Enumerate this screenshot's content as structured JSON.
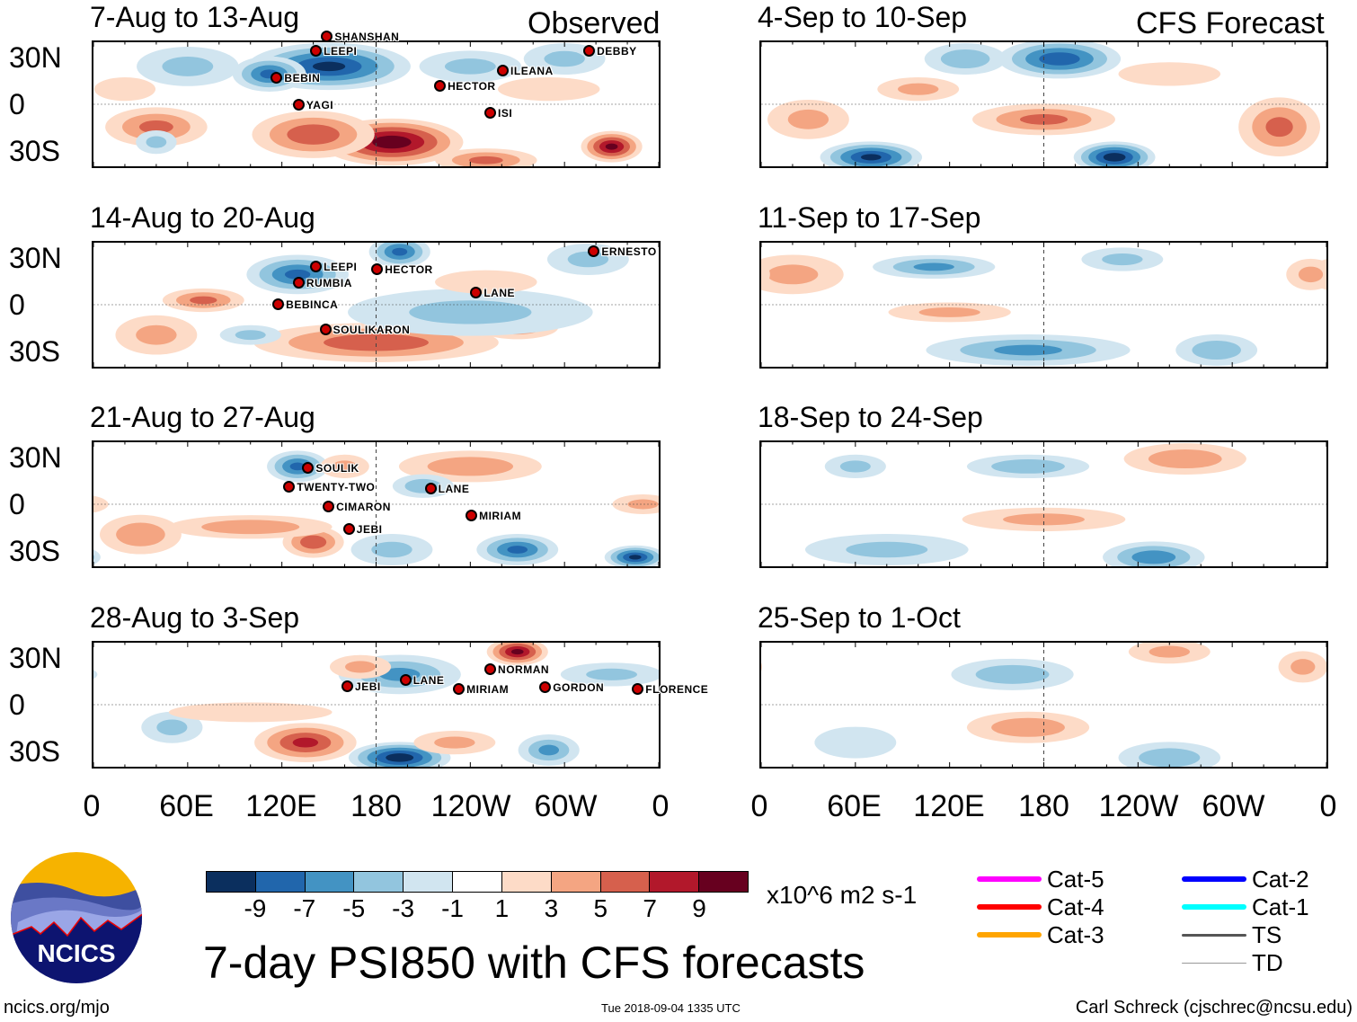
{
  "left_tag": "Observed",
  "right_tag": "CFS Forecast",
  "lat_labels": [
    "30N",
    "0",
    "30S"
  ],
  "lon_labels": [
    "0",
    "60E",
    "120E",
    "180",
    "120W",
    "60W",
    "0"
  ],
  "panels_left": [
    {
      "title": "7-Aug to 13-Aug",
      "features": [
        [
          150,
          25,
          -9,
          40,
          12
        ],
        [
          112,
          20,
          -7,
          18,
          9
        ],
        [
          60,
          25,
          -3,
          25,
          10
        ],
        [
          190,
          -25,
          10,
          35,
          12
        ],
        [
          140,
          -20,
          6,
          30,
          12
        ],
        [
          330,
          -28,
          9,
          15,
          8
        ],
        [
          40,
          -15,
          5,
          25,
          10
        ],
        [
          40,
          -25,
          -3,
          10,
          6
        ],
        [
          250,
          -37,
          5,
          25,
          6
        ],
        [
          300,
          30,
          -3,
          20,
          8
        ],
        [
          240,
          25,
          -3,
          25,
          8
        ],
        [
          20,
          10,
          2,
          15,
          6
        ],
        [
          290,
          10,
          2,
          25,
          6
        ]
      ],
      "storms": [
        {
          "name": "BEBIN",
          "lon": 113,
          "lat": 17
        },
        {
          "name": "YAGI",
          "lon": 127,
          "lat": 17
        },
        {
          "name": "LEEPI",
          "lon": 138,
          "lat": 17
        },
        {
          "name": "SHANSHAN",
          "lon": 145,
          "lat": 27
        },
        {
          "name": "HECTOR",
          "lon": 217,
          "lat": 12
        },
        {
          "name": "ISI",
          "lon": 249,
          "lat": 12
        },
        {
          "name": "ILEANA",
          "lon": 257,
          "lat": 13
        },
        {
          "name": "DEBBY",
          "lon": 312,
          "lat": 35
        }
      ]
    },
    {
      "title": "14-Aug to 20-Aug",
      "features": [
        [
          130,
          20,
          -7,
          25,
          10
        ],
        [
          195,
          35,
          -7,
          15,
          8
        ],
        [
          70,
          3,
          5,
          20,
          6
        ],
        [
          180,
          -25,
          6,
          60,
          10
        ],
        [
          270,
          -15,
          4,
          20,
          6
        ],
        [
          240,
          -5,
          -3,
          60,
          12
        ],
        [
          315,
          30,
          -3,
          20,
          8
        ],
        [
          250,
          15,
          2,
          25,
          6
        ],
        [
          40,
          -20,
          3,
          20,
          10
        ],
        [
          100,
          -20,
          -3,
          15,
          5
        ]
      ],
      "storms": [
        {
          "name": "LEEPI",
          "lon": 138,
          "lat": 25
        },
        {
          "name": "RUMBIA",
          "lon": 127,
          "lat": 23
        },
        {
          "name": "BEBINCA",
          "lon": 114,
          "lat": 18
        },
        {
          "name": "SOULIKARON",
          "lon": 144,
          "lat": 10
        },
        {
          "name": "HECTOR",
          "lon": 177,
          "lat": 23
        },
        {
          "name": "LANE",
          "lon": 240,
          "lat": 8
        },
        {
          "name": "ERNESTO",
          "lon": 315,
          "lat": 35
        }
      ]
    },
    {
      "title": "21-Aug to 27-Aug",
      "features": [
        [
          130,
          25,
          -7,
          15,
          8
        ],
        [
          160,
          25,
          3,
          12,
          6
        ],
        [
          140,
          -25,
          6,
          15,
          8
        ],
        [
          100,
          -15,
          4,
          40,
          6
        ],
        [
          270,
          -30,
          -7,
          20,
          8
        ],
        [
          345,
          -35,
          -9,
          15,
          6
        ],
        [
          240,
          25,
          4,
          35,
          8
        ],
        [
          210,
          12,
          -4,
          15,
          6
        ],
        [
          30,
          -20,
          4,
          20,
          10
        ],
        [
          190,
          -30,
          -3,
          20,
          8
        ],
        [
          350,
          0,
          3,
          15,
          5
        ]
      ],
      "storms": [
        {
          "name": "SOULIK",
          "lon": 133,
          "lat": 24
        },
        {
          "name": "TWENTY-TWO",
          "lon": 121,
          "lat": 20
        },
        {
          "name": "CIMARON",
          "lon": 146,
          "lat": 16
        },
        {
          "name": "JEBI",
          "lon": 159,
          "lat": 10
        },
        {
          "name": "LANE",
          "lon": 211,
          "lat": 10
        },
        {
          "name": "MIRIAM",
          "lon": 237,
          "lat": 10
        }
      ]
    },
    {
      "title": "28-Aug to 3-Sep",
      "features": [
        [
          195,
          20,
          -5,
          30,
          10
        ],
        [
          195,
          -35,
          -10,
          25,
          8
        ],
        [
          135,
          -25,
          7,
          25,
          10
        ],
        [
          270,
          35,
          9,
          15,
          7
        ],
        [
          170,
          25,
          3,
          15,
          6
        ],
        [
          290,
          -30,
          -5,
          15,
          8
        ],
        [
          230,
          -25,
          3,
          20,
          6
        ],
        [
          50,
          -15,
          -3,
          15,
          8
        ],
        [
          100,
          -5,
          2,
          40,
          5
        ],
        [
          330,
          20,
          -3,
          25,
          6
        ]
      ],
      "storms": [
        {
          "name": "JEBI",
          "lon": 158,
          "lat": 12
        },
        {
          "name": "LANE",
          "lon": 195,
          "lat": 16
        },
        {
          "name": "MIRIAM",
          "lon": 229,
          "lat": 10
        },
        {
          "name": "NORMAN",
          "lon": 249,
          "lat": 14
        },
        {
          "name": "GORDON",
          "lon": 284,
          "lat": 20
        },
        {
          "name": "FLORENCE",
          "lon": 343,
          "lat": 10
        }
      ]
    }
  ],
  "panels_right": [
    {
      "title": "4-Sep to 10-Sep",
      "features": [
        [
          190,
          30,
          -8,
          30,
          10
        ],
        [
          70,
          -35,
          -9,
          25,
          8
        ],
        [
          225,
          -35,
          -10,
          20,
          8
        ],
        [
          180,
          -10,
          5,
          35,
          8
        ],
        [
          330,
          -15,
          5,
          20,
          15
        ],
        [
          130,
          30,
          -4,
          20,
          8
        ],
        [
          100,
          10,
          3,
          20,
          6
        ],
        [
          260,
          20,
          2,
          25,
          6
        ],
        [
          30,
          -10,
          3,
          20,
          10
        ]
      ],
      "storms": []
    },
    {
      "title": "11-Sep to 17-Sep",
      "features": [
        [
          110,
          25,
          -5,
          30,
          6
        ],
        [
          170,
          -30,
          -5,
          50,
          8
        ],
        [
          20,
          20,
          3,
          25,
          10
        ],
        [
          120,
          -5,
          3,
          30,
          5
        ],
        [
          290,
          -30,
          -4,
          20,
          8
        ],
        [
          230,
          30,
          -3,
          20,
          6
        ],
        [
          350,
          20,
          3,
          12,
          8
        ]
      ],
      "storms": []
    },
    {
      "title": "18-Sep to 24-Sep",
      "features": [
        [
          270,
          30,
          4,
          30,
          8
        ],
        [
          170,
          25,
          -4,
          30,
          6
        ],
        [
          250,
          -35,
          -6,
          25,
          8
        ],
        [
          180,
          -10,
          3,
          40,
          6
        ],
        [
          80,
          -30,
          -3,
          40,
          8
        ],
        [
          60,
          25,
          -3,
          15,
          6
        ]
      ],
      "storms": []
    },
    {
      "title": "25-Sep to 1-Oct",
      "features": [
        [
          160,
          20,
          -4,
          30,
          8
        ],
        [
          170,
          -15,
          4,
          30,
          8
        ],
        [
          260,
          35,
          3,
          20,
          6
        ],
        [
          260,
          -35,
          -4,
          25,
          8
        ],
        [
          345,
          25,
          3,
          12,
          8
        ],
        [
          60,
          -25,
          -2,
          20,
          8
        ]
      ],
      "storms": []
    }
  ],
  "colorbar": {
    "colors": [
      "#0b2f5e",
      "#2166ac",
      "#4393c3",
      "#92c5de",
      "#d1e5f0",
      "#ffffff",
      "#fddbc7",
      "#f4a582",
      "#d6604d",
      "#b2182b",
      "#67001f"
    ],
    "labels": [
      "-9",
      "-7",
      "-5",
      "-3",
      "-1",
      "1",
      "3",
      "5",
      "7",
      "9"
    ],
    "units": "x10^6 m2 s-1"
  },
  "title": "7-day PSI850 with CFS forecasts",
  "legend": [
    {
      "label": "Cat-5",
      "color": "#ff00ff"
    },
    {
      "label": "Cat-4",
      "color": "#ff0000"
    },
    {
      "label": "Cat-3",
      "color": "#ffa500"
    },
    {
      "label": "Cat-2",
      "color": "#0000ff"
    },
    {
      "label": "Cat-1",
      "color": "#00ffff"
    },
    {
      "label": "TS",
      "color": "#555555"
    },
    {
      "label": "TD",
      "color": "#999999"
    }
  ],
  "logo_text": "NCICS",
  "footer": {
    "left": "ncics.org/mjo",
    "center": "Tue 2018-09-04 1335 UTC",
    "right": "Carl Schreck (cjschrec@ncsu.edu)"
  }
}
